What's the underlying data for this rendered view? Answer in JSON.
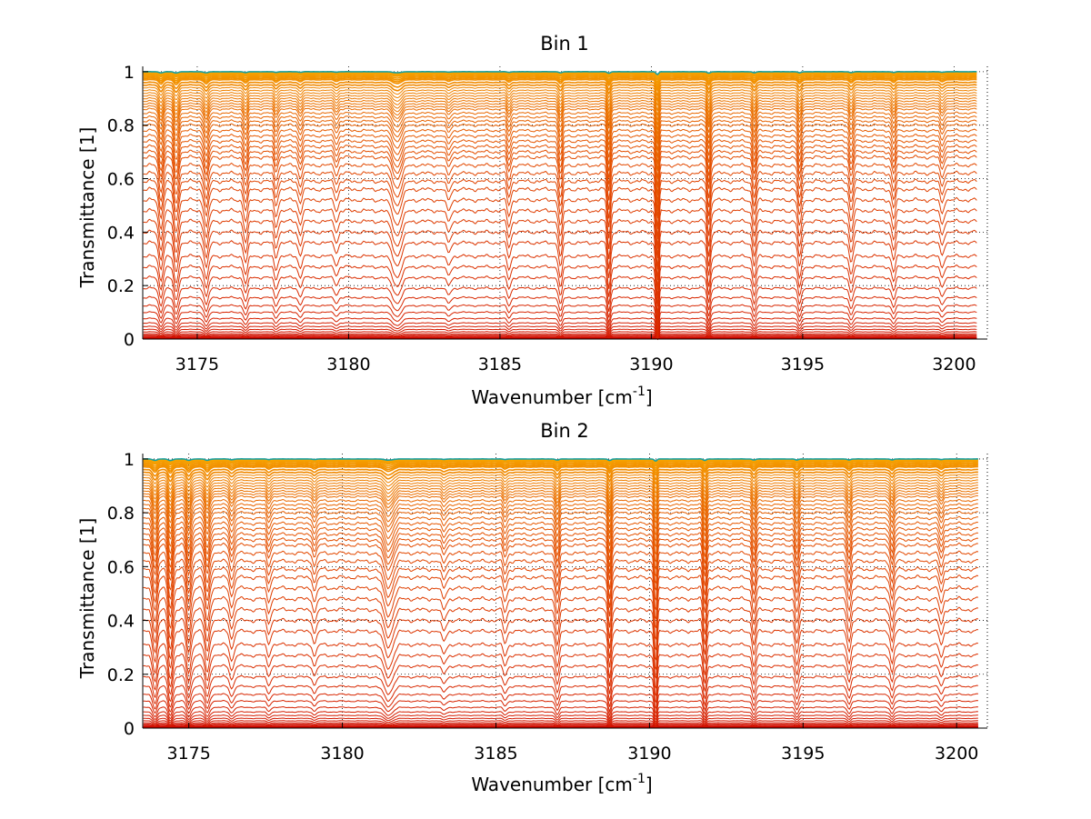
{
  "chart_data": [
    {
      "type": "line",
      "title": "Bin 1",
      "xlabel": "Wavenumber [cm",
      "xlabel_sup": "-1",
      "xlabel_tail": "]",
      "ylabel": "Transmittance [1]",
      "xlim": [
        3173.2,
        3201.1
      ],
      "ylim": [
        0,
        1.02
      ],
      "xticks": [
        3175,
        3180,
        3185,
        3190,
        3195,
        3200
      ],
      "yticks": [
        0,
        0.2,
        0.4,
        0.6,
        0.8,
        1
      ],
      "ytick_labels": [
        "0",
        "0.2",
        "0.4",
        "0.6",
        "0.8",
        "1"
      ],
      "grid": "dotted",
      "x_end": 3200.75,
      "series_count": 60,
      "series_levels": [
        0.001,
        0.002,
        0.003,
        0.004,
        0.006,
        0.008,
        0.011,
        0.015,
        0.02,
        0.027,
        0.036,
        0.047,
        0.06,
        0.077,
        0.1,
        0.125,
        0.155,
        0.19,
        0.23,
        0.27,
        0.31,
        0.36,
        0.4,
        0.44,
        0.48,
        0.52,
        0.56,
        0.59,
        0.62,
        0.65,
        0.68,
        0.7,
        0.72,
        0.74,
        0.76,
        0.78,
        0.8,
        0.815,
        0.83,
        0.845,
        0.86,
        0.87,
        0.88,
        0.89,
        0.9,
        0.91,
        0.92,
        0.93,
        0.94,
        0.95,
        0.96,
        0.97,
        0.975,
        0.98,
        0.985,
        0.99,
        0.993,
        0.996,
        0.998,
        1.0
      ],
      "color_low": "#cc0000",
      "color_mid": "#e34a00",
      "color_high": "#f7a800",
      "color_top": "#1aa0a0",
      "absorption_lines": [
        {
          "x": 3173.8,
          "depth": 0.1,
          "width": 0.1
        },
        {
          "x": 3174.3,
          "depth": 0.12,
          "width": 0.1
        },
        {
          "x": 3175.3,
          "depth": 0.1,
          "width": 0.1
        },
        {
          "x": 3176.6,
          "depth": 0.08,
          "width": 0.09
        },
        {
          "x": 3177.6,
          "depth": 0.06,
          "width": 0.08
        },
        {
          "x": 3178.4,
          "depth": 0.05,
          "width": 0.08
        },
        {
          "x": 3179.6,
          "depth": 0.04,
          "width": 0.08
        },
        {
          "x": 3181.6,
          "depth": 0.09,
          "width": 0.2
        },
        {
          "x": 3183.3,
          "depth": 0.04,
          "width": 0.1
        },
        {
          "x": 3185.3,
          "depth": 0.06,
          "width": 0.08
        },
        {
          "x": 3187.0,
          "depth": 0.1,
          "width": 0.08
        },
        {
          "x": 3188.6,
          "depth": 0.14,
          "width": 0.07
        },
        {
          "x": 3190.2,
          "depth": 0.26,
          "width": 0.06
        },
        {
          "x": 3191.9,
          "depth": 0.13,
          "width": 0.07
        },
        {
          "x": 3193.4,
          "depth": 0.09,
          "width": 0.08
        },
        {
          "x": 3194.9,
          "depth": 0.1,
          "width": 0.08
        },
        {
          "x": 3196.6,
          "depth": 0.08,
          "width": 0.08
        },
        {
          "x": 3198.0,
          "depth": 0.07,
          "width": 0.08
        },
        {
          "x": 3199.6,
          "depth": 0.05,
          "width": 0.08
        }
      ]
    },
    {
      "type": "line",
      "title": "Bin 2",
      "xlabel": "Wavenumber [cm",
      "xlabel_sup": "-1",
      "xlabel_tail": "]",
      "ylabel": "Transmittance [1]",
      "xlim": [
        3173.5,
        3201.0
      ],
      "ylim": [
        0,
        1.02
      ],
      "xticks": [
        3175,
        3180,
        3185,
        3190,
        3195,
        3200
      ],
      "yticks": [
        0,
        0.2,
        0.4,
        0.6,
        0.8,
        1
      ],
      "ytick_labels": [
        "0",
        "0.2",
        "0.4",
        "0.6",
        "0.8",
        "1"
      ],
      "grid": "dotted",
      "x_end": 3200.7,
      "series_count": 60,
      "series_levels": [
        0.001,
        0.002,
        0.003,
        0.004,
        0.006,
        0.008,
        0.011,
        0.015,
        0.02,
        0.027,
        0.036,
        0.047,
        0.06,
        0.077,
        0.1,
        0.125,
        0.155,
        0.19,
        0.23,
        0.27,
        0.31,
        0.36,
        0.4,
        0.44,
        0.48,
        0.52,
        0.56,
        0.59,
        0.62,
        0.65,
        0.68,
        0.7,
        0.72,
        0.74,
        0.76,
        0.78,
        0.8,
        0.815,
        0.83,
        0.845,
        0.86,
        0.87,
        0.88,
        0.89,
        0.9,
        0.91,
        0.92,
        0.93,
        0.94,
        0.95,
        0.96,
        0.97,
        0.975,
        0.98,
        0.985,
        0.99,
        0.993,
        0.996,
        0.998,
        1.0
      ],
      "color_low": "#cc0000",
      "color_mid": "#e34a00",
      "color_high": "#f7a800",
      "color_top": "#1aa0a0",
      "absorption_lines": [
        {
          "x": 3173.9,
          "depth": 0.12,
          "width": 0.1
        },
        {
          "x": 3174.4,
          "depth": 0.14,
          "width": 0.1
        },
        {
          "x": 3175.0,
          "depth": 0.12,
          "width": 0.1
        },
        {
          "x": 3175.6,
          "depth": 0.12,
          "width": 0.1
        },
        {
          "x": 3176.4,
          "depth": 0.07,
          "width": 0.09
        },
        {
          "x": 3177.6,
          "depth": 0.05,
          "width": 0.08
        },
        {
          "x": 3179.1,
          "depth": 0.05,
          "width": 0.08
        },
        {
          "x": 3181.5,
          "depth": 0.1,
          "width": 0.2
        },
        {
          "x": 3183.3,
          "depth": 0.04,
          "width": 0.1
        },
        {
          "x": 3185.3,
          "depth": 0.05,
          "width": 0.08
        },
        {
          "x": 3187.0,
          "depth": 0.1,
          "width": 0.08
        },
        {
          "x": 3188.7,
          "depth": 0.14,
          "width": 0.07
        },
        {
          "x": 3190.2,
          "depth": 0.2,
          "width": 0.06
        },
        {
          "x": 3191.8,
          "depth": 0.13,
          "width": 0.07
        },
        {
          "x": 3193.4,
          "depth": 0.09,
          "width": 0.08
        },
        {
          "x": 3194.8,
          "depth": 0.09,
          "width": 0.08
        },
        {
          "x": 3196.5,
          "depth": 0.08,
          "width": 0.08
        },
        {
          "x": 3197.9,
          "depth": 0.08,
          "width": 0.08
        },
        {
          "x": 3199.5,
          "depth": 0.06,
          "width": 0.08
        }
      ]
    }
  ]
}
